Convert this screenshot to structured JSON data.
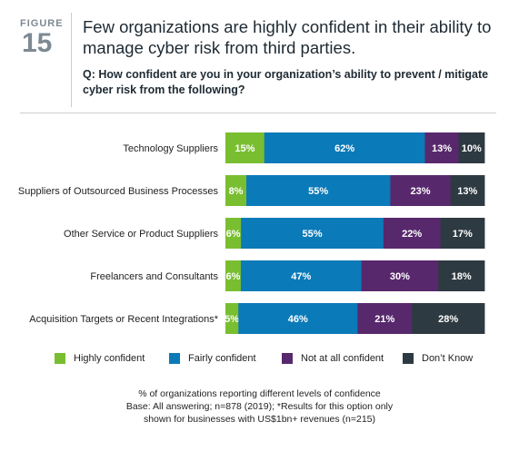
{
  "figure": {
    "label": "FIGURE",
    "number": "15"
  },
  "title": "Few organizations are highly confident in their ability to manage cyber risk from third parties.",
  "question": "Q: How confident are you in your organization’s ability to prevent / mitigate cyber risk from the following?",
  "colors": {
    "highly": "#79be30",
    "fairly": "#0b7ab8",
    "not_at_all": "#58286d",
    "dont_know": "#2e3a42",
    "label_text": "#ffffff"
  },
  "chart_data": {
    "type": "bar",
    "orientation": "horizontal",
    "stacked": true,
    "categories": [
      "Technology Suppliers",
      "Suppliers of Outsourced Business Processes",
      "Other Service or Product Suppliers",
      "Freelancers and Consultants",
      "Acquisition Targets or Recent Integrations*"
    ],
    "series": [
      {
        "name": "Highly confident",
        "values": [
          15,
          8,
          6,
          6,
          5
        ],
        "labels": [
          "15%",
          "8%",
          "6%",
          "6%",
          "5%"
        ]
      },
      {
        "name": "Fairly confident",
        "values": [
          62,
          55,
          55,
          47,
          46
        ],
        "labels": [
          "62%",
          "55%",
          "55%",
          "47%",
          "46%"
        ]
      },
      {
        "name": "Not at all confident",
        "values": [
          13,
          23,
          22,
          30,
          21
        ],
        "labels": [
          "13%",
          "23%",
          "22%",
          "30%",
          "21%"
        ]
      },
      {
        "name": "Don’t Know",
        "values": [
          10,
          13,
          17,
          18,
          28
        ],
        "labels": [
          "10%",
          "13%",
          "17%",
          "18%",
          "28%"
        ]
      }
    ],
    "unit": "%",
    "xlim": [
      0,
      100
    ],
    "grid": false,
    "legend_position": "bottom"
  },
  "footnote": {
    "line1": "% of organizations reporting different levels of confidence",
    "line2": "Base: All answering; n=878 (2019); *Results for this option only",
    "line3": "shown for businesses with US$1bn+ revenues (n=215)"
  }
}
